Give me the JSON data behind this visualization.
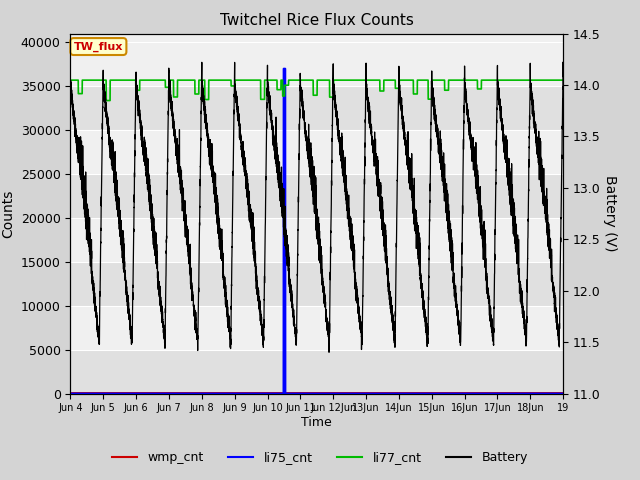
{
  "title": "Twitchel Rice Flux Counts",
  "ylabel_left": "Counts",
  "ylabel_right": "Battery (V)",
  "xlabel": "Time",
  "xlim": [
    4,
    19
  ],
  "ylim_left": [
    0,
    41000
  ],
  "ylim_right": [
    11.0,
    14.5
  ],
  "yticks_left": [
    0,
    5000,
    10000,
    15000,
    20000,
    25000,
    30000,
    35000,
    40000
  ],
  "yticks_right": [
    11.0,
    11.5,
    12.0,
    12.5,
    13.0,
    13.5,
    14.0,
    14.5
  ],
  "xtick_positions": [
    4,
    5,
    6,
    7,
    8,
    9,
    10,
    11,
    12,
    13,
    14,
    15,
    16,
    17,
    18,
    19
  ],
  "xtick_labels": [
    "Jun 4",
    "Jun 5",
    "Jun 6",
    "Jun 7",
    "Jun 8",
    "Jun 9",
    "Jun 10",
    "Jun 11",
    "Jun 12Jun",
    "13Jun",
    "14Jun",
    "15Jun",
    "16Jun",
    "17Jun",
    "18Jun",
    "19"
  ],
  "fig_bg_color": "#d4d4d4",
  "plot_bg_light": "#f0f0f0",
  "plot_bg_dark": "#e0e0e0",
  "grid_color": "#ffffff",
  "wmp_cnt_color": "#cc0000",
  "li75_cnt_color": "#0000ff",
  "li77_cnt_color": "#00bb00",
  "battery_color": "#000000",
  "annotation_text": "TW_flux",
  "annotation_color": "#cc0000",
  "annotation_bg": "#ffffcc",
  "annotation_border": "#cc8800",
  "li77_level": 35700,
  "battery_min": 11.5,
  "battery_max": 14.2,
  "battery_period": 1.0,
  "noise_seed": 42
}
